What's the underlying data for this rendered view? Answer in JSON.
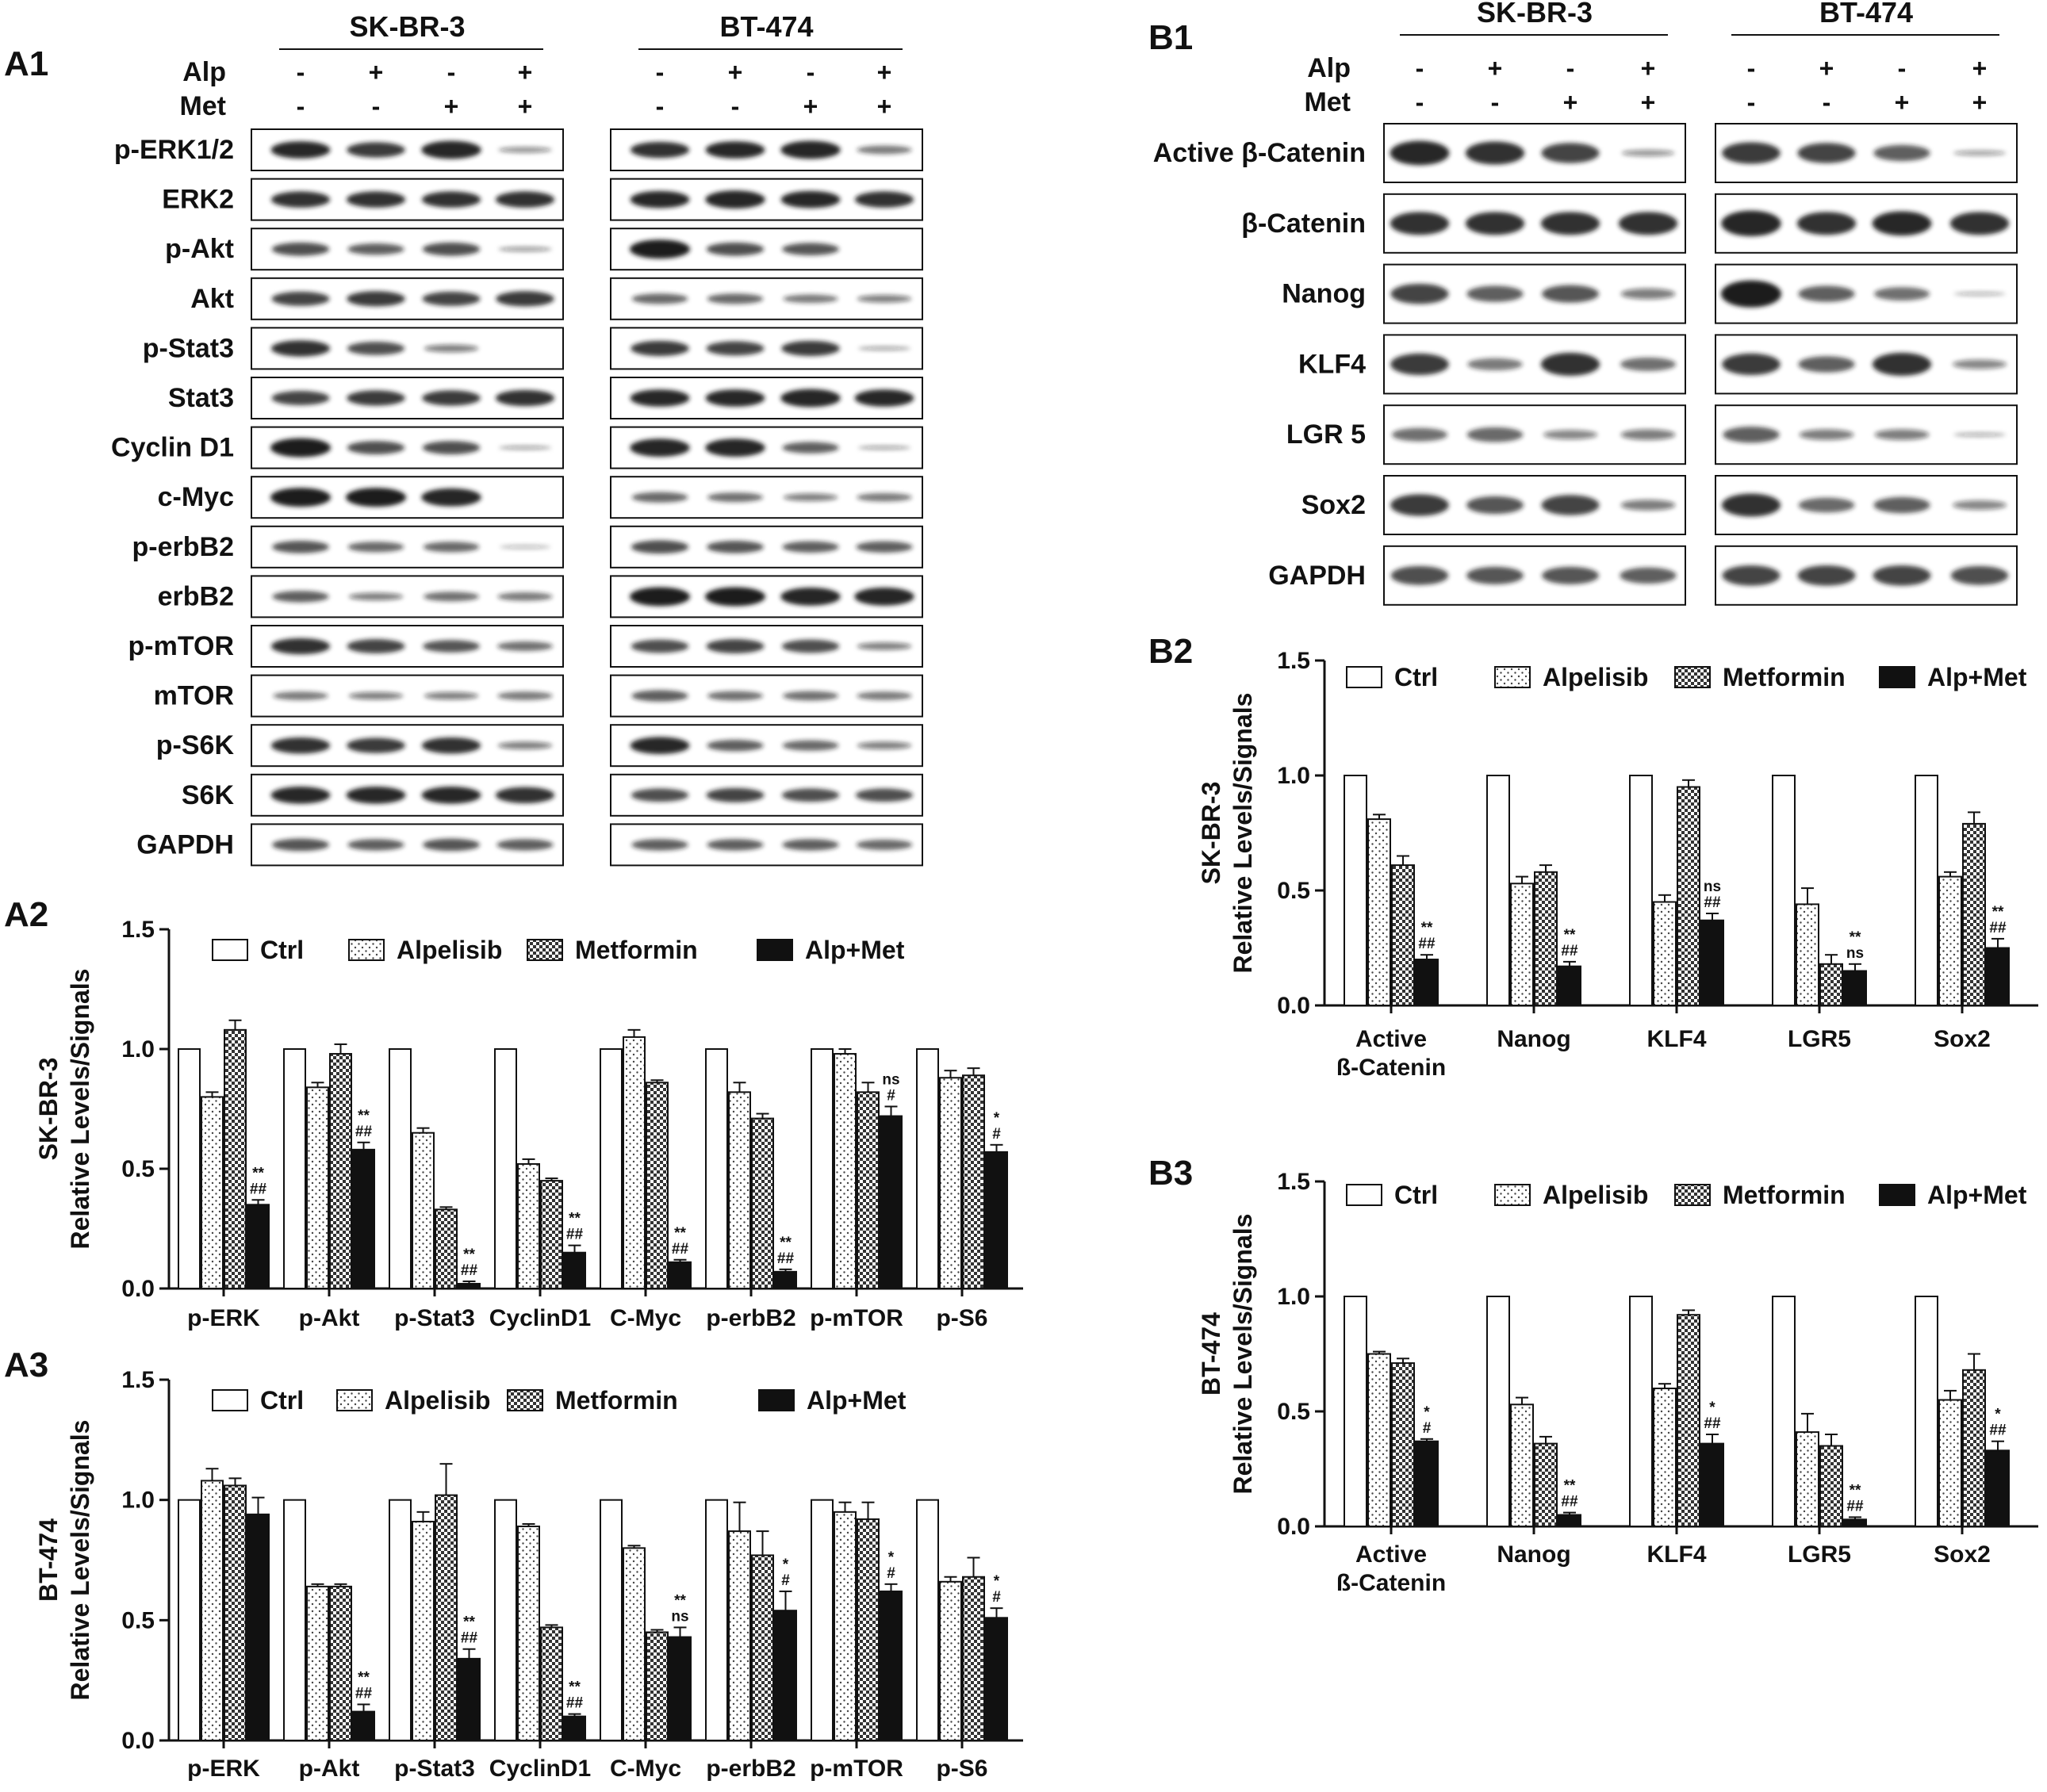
{
  "colors": {
    "ink": "#111111",
    "band": "#1a1a1a",
    "background": "#ffffff"
  },
  "western_blot_A1": {
    "panel_label": "A1",
    "cell_lines": [
      "SK-BR-3",
      "BT-474"
    ],
    "treatment_rows": [
      {
        "name": "Alp",
        "values": [
          "-",
          "+",
          "-",
          "+"
        ]
      },
      {
        "name": "Met",
        "values": [
          "-",
          "-",
          "+",
          "+"
        ]
      }
    ],
    "proteins": [
      "p-ERK1/2",
      "ERK2",
      "p-Akt",
      "Akt",
      "p-Stat3",
      "Stat3",
      "Cyclin D1",
      "c-Myc",
      "p-erbB2",
      "erbB2",
      "p-mTOR",
      "mTOR",
      "p-S6K",
      "S6K",
      "GAPDH"
    ],
    "band_intensity": {
      "SK-BR-3": [
        [
          0.9,
          0.8,
          0.95,
          0.3
        ],
        [
          0.85,
          0.85,
          0.85,
          0.85
        ],
        [
          0.7,
          0.6,
          0.7,
          0.25
        ],
        [
          0.75,
          0.8,
          0.75,
          0.8
        ],
        [
          0.85,
          0.7,
          0.4,
          0.0
        ],
        [
          0.75,
          0.8,
          0.8,
          0.85
        ],
        [
          1.0,
          0.7,
          0.7,
          0.2
        ],
        [
          1.0,
          1.0,
          0.95,
          0.0
        ],
        [
          0.65,
          0.55,
          0.55,
          0.05
        ],
        [
          0.6,
          0.4,
          0.5,
          0.45
        ],
        [
          0.85,
          0.75,
          0.65,
          0.5
        ],
        [
          0.45,
          0.4,
          0.4,
          0.45
        ],
        [
          0.85,
          0.8,
          0.85,
          0.4
        ],
        [
          0.9,
          0.9,
          0.9,
          0.85
        ],
        [
          0.65,
          0.6,
          0.65,
          0.6
        ]
      ],
      "BT-474": [
        [
          0.85,
          0.9,
          0.95,
          0.45
        ],
        [
          0.9,
          0.95,
          0.9,
          0.85
        ],
        [
          1.0,
          0.7,
          0.65,
          0.0
        ],
        [
          0.55,
          0.55,
          0.45,
          0.4
        ],
        [
          0.8,
          0.75,
          0.8,
          0.2
        ],
        [
          0.9,
          0.9,
          0.95,
          0.9
        ],
        [
          0.95,
          0.95,
          0.6,
          0.2
        ],
        [
          0.55,
          0.5,
          0.4,
          0.45
        ],
        [
          0.7,
          0.65,
          0.6,
          0.6
        ],
        [
          1.0,
          1.0,
          0.95,
          0.95
        ],
        [
          0.7,
          0.75,
          0.7,
          0.4
        ],
        [
          0.6,
          0.5,
          0.5,
          0.45
        ],
        [
          0.9,
          0.6,
          0.55,
          0.4
        ],
        [
          0.7,
          0.75,
          0.7,
          0.7
        ],
        [
          0.6,
          0.6,
          0.6,
          0.55
        ]
      ]
    }
  },
  "western_blot_B1": {
    "panel_label": "B1",
    "cell_lines": [
      "SK-BR-3",
      "BT-474"
    ],
    "treatment_rows": [
      {
        "name": "Alp",
        "values": [
          "-",
          "+",
          "-",
          "+"
        ]
      },
      {
        "name": "Met",
        "values": [
          "-",
          "-",
          "+",
          "+"
        ]
      }
    ],
    "proteins": [
      "Active β-Catenin",
      "β-Catenin",
      "Nanog",
      "KLF4",
      "LGR 5",
      "Sox2",
      "GAPDH"
    ],
    "band_intensity": {
      "SK-BR-3": [
        [
          0.9,
          0.85,
          0.75,
          0.25
        ],
        [
          0.85,
          0.85,
          0.85,
          0.85
        ],
        [
          0.75,
          0.6,
          0.65,
          0.4
        ],
        [
          0.8,
          0.45,
          0.85,
          0.5
        ],
        [
          0.5,
          0.55,
          0.35,
          0.4
        ],
        [
          0.8,
          0.65,
          0.75,
          0.4
        ],
        [
          0.7,
          0.65,
          0.65,
          0.6
        ]
      ],
      "BT-474": [
        [
          0.8,
          0.75,
          0.6,
          0.2
        ],
        [
          0.95,
          0.85,
          0.9,
          0.85
        ],
        [
          1.0,
          0.6,
          0.5,
          0.1
        ],
        [
          0.8,
          0.6,
          0.85,
          0.35
        ],
        [
          0.6,
          0.4,
          0.4,
          0.15
        ],
        [
          0.85,
          0.55,
          0.6,
          0.35
        ],
        [
          0.75,
          0.75,
          0.75,
          0.7
        ]
      ]
    }
  },
  "chart_data": [
    {
      "panel_label": "A2",
      "type": "bar",
      "row_label": "SK-BR-3",
      "ylabel": "Relative Levels/Signals",
      "categories": [
        "p-ERK",
        "p-Akt",
        "p-Stat3",
        "CyclinD1",
        "C-Myc",
        "p-erbB2",
        "p-mTOR",
        "p-S6"
      ],
      "ylim": [
        0,
        1.5
      ],
      "yticks": [
        "0.0",
        "0.5",
        "1.0",
        "1.5"
      ],
      "legend_position": "top",
      "series": [
        {
          "name": "Ctrl",
          "values": [
            1.0,
            1.0,
            1.0,
            1.0,
            1.0,
            1.0,
            1.0,
            1.0
          ],
          "errors": [
            0,
            0,
            0,
            0,
            0,
            0,
            0,
            0
          ]
        },
        {
          "name": "Alpelisib",
          "values": [
            0.8,
            0.84,
            0.65,
            0.52,
            1.05,
            0.82,
            0.98,
            0.88
          ],
          "errors": [
            0.02,
            0.02,
            0.02,
            0.02,
            0.03,
            0.04,
            0.02,
            0.03
          ]
        },
        {
          "name": "Metformin",
          "values": [
            1.08,
            0.98,
            0.33,
            0.45,
            0.86,
            0.71,
            0.82,
            0.89
          ],
          "errors": [
            0.04,
            0.04,
            0.01,
            0.01,
            0.01,
            0.02,
            0.04,
            0.03
          ]
        },
        {
          "name": "Alp+Met",
          "values": [
            0.35,
            0.58,
            0.02,
            0.15,
            0.11,
            0.07,
            0.72,
            0.57
          ],
          "errors": [
            0.02,
            0.03,
            0.01,
            0.03,
            0.01,
            0.01,
            0.04,
            0.03
          ]
        }
      ],
      "annotations": [
        [
          "**",
          "##"
        ],
        [
          "**",
          "##"
        ],
        [
          "**",
          "##"
        ],
        [
          "**",
          "##"
        ],
        [
          "**",
          "##"
        ],
        [
          "**",
          "##"
        ],
        [
          "ns",
          "#"
        ],
        [
          "*",
          "#"
        ]
      ]
    },
    {
      "panel_label": "A3",
      "type": "bar",
      "row_label": "BT-474",
      "ylabel": "Relative Levels/Signals",
      "categories": [
        "p-ERK",
        "p-Akt",
        "p-Stat3",
        "CyclinD1",
        "C-Myc",
        "p-erbB2",
        "p-mTOR",
        "p-S6"
      ],
      "ylim": [
        0,
        1.5
      ],
      "yticks": [
        "0.0",
        "0.5",
        "1.0",
        "1.5"
      ],
      "legend_position": "top",
      "series": [
        {
          "name": "Ctrl",
          "values": [
            1.0,
            1.0,
            1.0,
            1.0,
            1.0,
            1.0,
            1.0,
            1.0
          ],
          "errors": [
            0,
            0,
            0,
            0,
            0,
            0,
            0,
            0
          ]
        },
        {
          "name": "Alpelisib",
          "values": [
            1.08,
            0.64,
            0.91,
            0.89,
            0.8,
            0.87,
            0.95,
            0.66
          ],
          "errors": [
            0.05,
            0.01,
            0.04,
            0.01,
            0.01,
            0.12,
            0.04,
            0.02
          ]
        },
        {
          "name": "Metformin",
          "values": [
            1.06,
            0.64,
            1.02,
            0.47,
            0.45,
            0.77,
            0.92,
            0.68
          ],
          "errors": [
            0.03,
            0.01,
            0.13,
            0.01,
            0.01,
            0.1,
            0.07,
            0.08
          ]
        },
        {
          "name": "Alp+Met",
          "values": [
            0.94,
            0.12,
            0.34,
            0.1,
            0.43,
            0.54,
            0.62,
            0.51
          ],
          "errors": [
            0.07,
            0.03,
            0.04,
            0.01,
            0.04,
            0.08,
            0.03,
            0.04
          ]
        }
      ],
      "annotations": [
        [],
        [
          "**",
          "##"
        ],
        [
          "**",
          "##"
        ],
        [
          "**",
          "##"
        ],
        [
          "**",
          "ns"
        ],
        [
          "*",
          "#"
        ],
        [
          "*",
          "#"
        ],
        [
          "*",
          "#"
        ]
      ]
    },
    {
      "panel_label": "B2",
      "type": "bar",
      "row_label": "SK-BR-3",
      "ylabel": "Relative Levels/Signals",
      "categories": [
        "Active\nß-Catenin",
        "Nanog",
        "KLF4",
        "LGR5",
        "Sox2"
      ],
      "ylim": [
        0,
        1.5
      ],
      "yticks": [
        "0.0",
        "0.5",
        "1.0",
        "1.5"
      ],
      "legend_position": "top",
      "series": [
        {
          "name": "Ctrl",
          "values": [
            1.0,
            1.0,
            1.0,
            1.0,
            1.0
          ],
          "errors": [
            0,
            0,
            0,
            0,
            0
          ]
        },
        {
          "name": "Alpelisib",
          "values": [
            0.81,
            0.53,
            0.45,
            0.44,
            0.56
          ],
          "errors": [
            0.02,
            0.03,
            0.03,
            0.07,
            0.02
          ]
        },
        {
          "name": "Metformin",
          "values": [
            0.61,
            0.58,
            0.95,
            0.18,
            0.79
          ],
          "errors": [
            0.04,
            0.03,
            0.03,
            0.04,
            0.05
          ]
        },
        {
          "name": "Alp+Met",
          "values": [
            0.2,
            0.17,
            0.37,
            0.15,
            0.25
          ],
          "errors": [
            0.02,
            0.02,
            0.03,
            0.03,
            0.04
          ]
        }
      ],
      "annotations": [
        [
          "**",
          "##"
        ],
        [
          "**",
          "##"
        ],
        [
          "ns",
          "##"
        ],
        [
          "**",
          "ns"
        ],
        [
          "**",
          "##"
        ]
      ]
    },
    {
      "panel_label": "B3",
      "type": "bar",
      "row_label": "BT-474",
      "ylabel": "Relative Levels/Signals",
      "categories": [
        "Active\nß-Catenin",
        "Nanog",
        "KLF4",
        "LGR5",
        "Sox2"
      ],
      "ylim": [
        0,
        1.5
      ],
      "yticks": [
        "0.0",
        "0.5",
        "1.0",
        "1.5"
      ],
      "legend_position": "top",
      "series": [
        {
          "name": "Ctrl",
          "values": [
            1.0,
            1.0,
            1.0,
            1.0,
            1.0
          ],
          "errors": [
            0,
            0,
            0,
            0,
            0
          ]
        },
        {
          "name": "Alpelisib",
          "values": [
            0.75,
            0.53,
            0.6,
            0.41,
            0.55
          ],
          "errors": [
            0.01,
            0.03,
            0.02,
            0.08,
            0.04
          ]
        },
        {
          "name": "Metformin",
          "values": [
            0.71,
            0.36,
            0.92,
            0.35,
            0.68
          ],
          "errors": [
            0.02,
            0.03,
            0.02,
            0.05,
            0.07
          ]
        },
        {
          "name": "Alp+Met",
          "values": [
            0.37,
            0.05,
            0.36,
            0.03,
            0.33
          ],
          "errors": [
            0.01,
            0.01,
            0.04,
            0.01,
            0.04
          ]
        }
      ],
      "annotations": [
        [
          "*",
          "#"
        ],
        [
          "**",
          "##"
        ],
        [
          "*",
          "##"
        ],
        [
          "**",
          "##"
        ],
        [
          "*",
          "##"
        ]
      ]
    }
  ]
}
